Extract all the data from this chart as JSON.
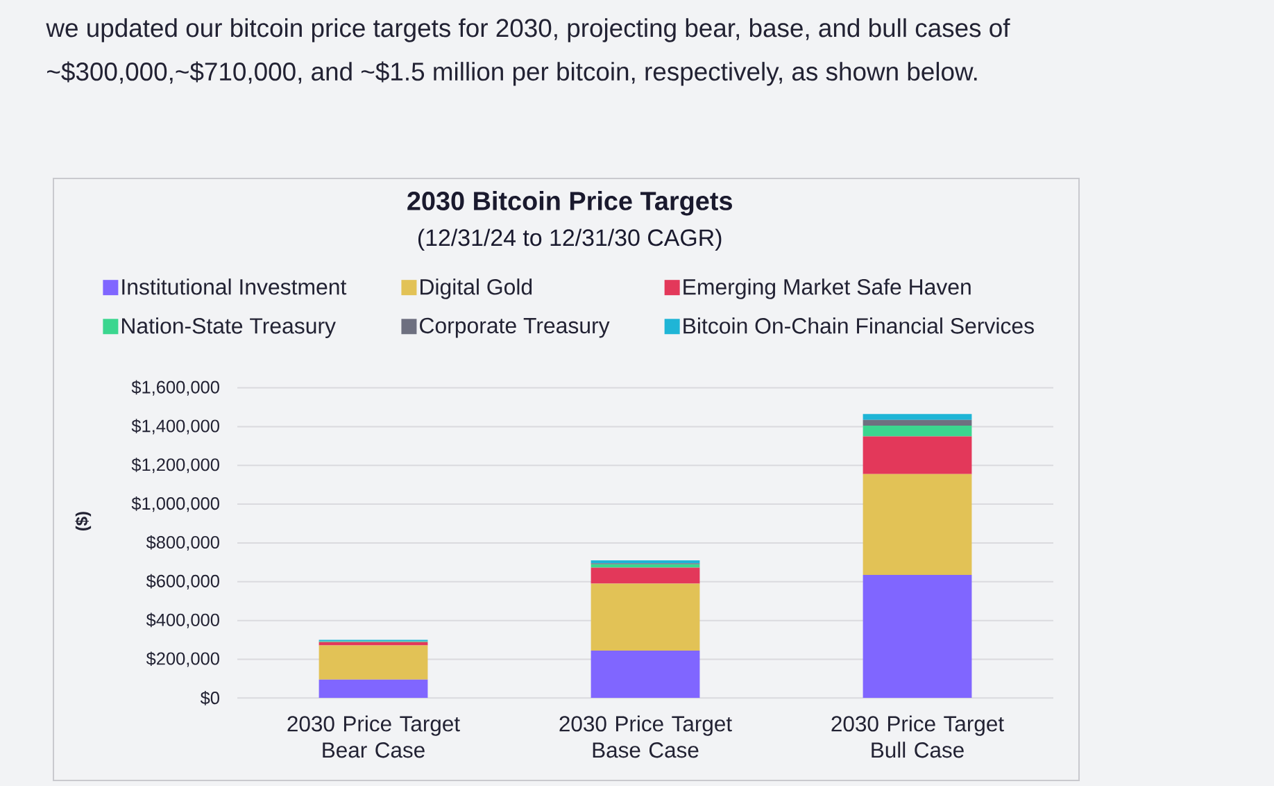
{
  "chart_data": {
    "type": "bar",
    "stacked": true,
    "title": "2030 Bitcoin Price Targets",
    "subtitle": "(12/31/24 to 12/31/30 CAGR)",
    "ylabel": "($)",
    "annotations": [
      "we updated our bitcoin price targets for 2030, projecting bear, base, and bull cases of ~$300,000,~$710,000, and ~$1.5 million per bitcoin, respectively, as shown below."
    ],
    "categories": [
      "2030 Price Target Bear Case",
      "2030 Price Target Base Case",
      "2030 Price Target Bull Case"
    ],
    "series": [
      {
        "name": "Institutional Investment",
        "color": "#8066ff",
        "values": [
          95000,
          245000,
          635000
        ]
      },
      {
        "name": "Digital Gold",
        "color": "#e2c256",
        "values": [
          177000,
          345000,
          520000
        ]
      },
      {
        "name": "Emerging Market Safe Haven",
        "color": "#e3385a",
        "values": [
          17000,
          83000,
          195000
        ]
      },
      {
        "name": "Nation-State Treasury",
        "color": "#3bd68f",
        "values": [
          3000,
          17000,
          55000
        ]
      },
      {
        "name": "Corporate Treasury",
        "color": "#6e7080",
        "values": [
          1000,
          5000,
          30000
        ]
      },
      {
        "name": "Bitcoin On-Chain Financial Services",
        "color": "#1fb5d6",
        "values": [
          7000,
          15000,
          30000
        ]
      }
    ],
    "ylim": [
      0,
      1600000
    ],
    "yticks": [
      {
        "value": 0,
        "label": "$0"
      },
      {
        "value": 200000,
        "label": "$200,000"
      },
      {
        "value": 400000,
        "label": "$400,000"
      },
      {
        "value": 600000,
        "label": "$600,000"
      },
      {
        "value": 800000,
        "label": "$800,000"
      },
      {
        "value": 1000000,
        "label": "$1,000,000"
      },
      {
        "value": 1200000,
        "label": "$1,200,000"
      },
      {
        "value": 1400000,
        "label": "$1,400,000"
      },
      {
        "value": 1600000,
        "label": "$1,600,000"
      }
    ],
    "grid": "y",
    "legend": "top"
  }
}
